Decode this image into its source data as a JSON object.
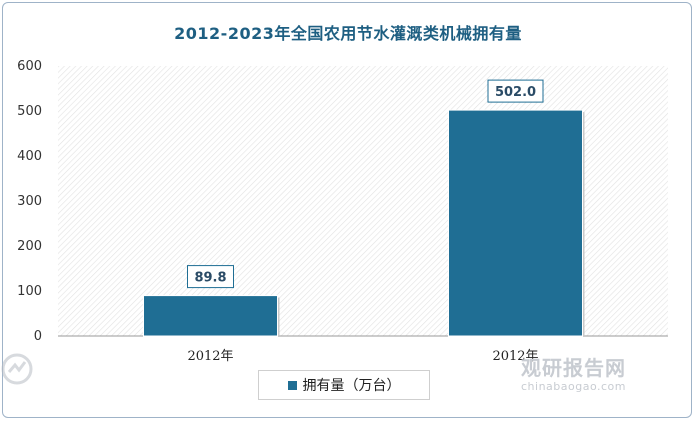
{
  "chart_data": {
    "type": "bar",
    "title": "2012-2023年全国农用节水灌溉类机械拥有量",
    "categories": [
      "2012年",
      "2012年"
    ],
    "series": [
      {
        "name": "拥有量（万台）",
        "values": [
          89.8,
          502.0
        ],
        "labels": [
          "89.8",
          "502.0"
        ],
        "color": "#1f6e94"
      }
    ],
    "ylim": [
      0,
      600
    ],
    "yticks": [
      "0",
      "100",
      "200",
      "300",
      "400",
      "500",
      "600"
    ],
    "xlabel": "",
    "ylabel": "",
    "grid": false,
    "legend": "bottom-center"
  },
  "watermark": {
    "brand": "观研报告网",
    "url": "chinabaogao.com"
  }
}
